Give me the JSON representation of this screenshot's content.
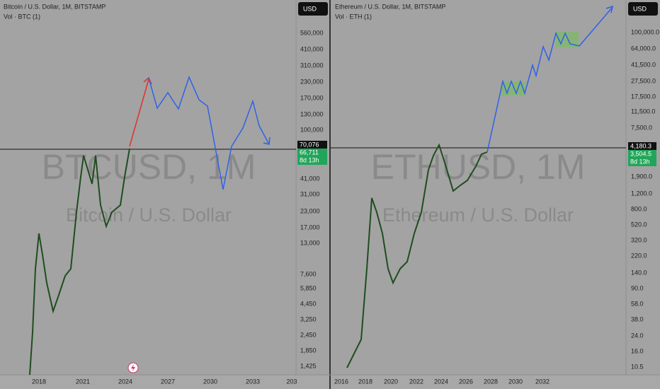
{
  "left": {
    "header": "Bitcoin / U.S. Dollar, 1M, BITSTAMP",
    "indicator": "Vol · BTC (1)",
    "currency": "USD",
    "watermark": "BTCUSD, 1M",
    "watermark_sub": "Bitcoin / U.S. Dollar",
    "price_labels_upper": [
      "560,000",
      "410,000",
      "310,000",
      "230,000",
      "170,000",
      "130,000",
      "100,000"
    ],
    "last_price": "70,076",
    "current_price": "66,711",
    "countdown": "8d 13h",
    "price_labels_lower": [
      "41,000",
      "31,000",
      "23,000",
      "17,000",
      "13,000",
      "7,600",
      "5,850",
      "4,450",
      "3,250",
      "2,450",
      "1,850",
      "1,425"
    ],
    "time_labels": [
      "2018",
      "2021",
      "2024",
      "2027",
      "2030",
      "2033",
      "203"
    ]
  },
  "right": {
    "header": "Ethereum / U.S. Dollar, 1M, BITSTAMP",
    "indicator": "Vol · ETH (1)",
    "currency": "USD",
    "watermark": "ETHUSD, 1M",
    "watermark_sub": "Ethereum / U.S. Dollar",
    "price_labels_upper": [
      "100,000.0",
      "64,000.0",
      "41,500.0",
      "27,500.0",
      "17,500.0",
      "11,500.0",
      "7,500.0"
    ],
    "last_price": "4,180.3",
    "current_price": "3,504.5",
    "countdown": "8d 13h",
    "price_labels_lower": [
      "1,900.0",
      "1,200.0",
      "800.0",
      "520.0",
      "320.0",
      "220.0",
      "140.0",
      "90.0",
      "58.0",
      "38.0",
      "24.0",
      "16.0",
      "10.5"
    ],
    "time_labels": [
      "2016",
      "2018",
      "2020",
      "2022",
      "2024",
      "2026",
      "2028",
      "2030",
      "2032"
    ]
  }
}
